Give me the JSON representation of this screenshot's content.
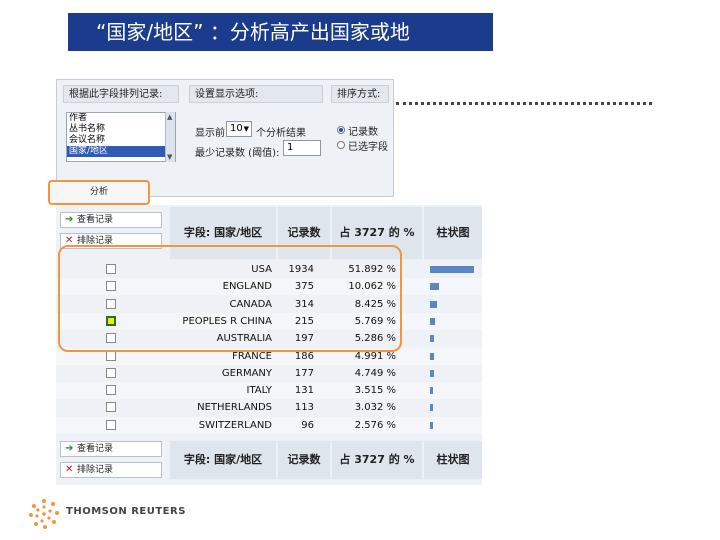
{
  "title": "“国家/地区” ：分析高产出国家或地",
  "analysis_panel": {
    "field_header": "根据此字段排列记录:",
    "display_header": "设置显示选项:",
    "sort_header": "排序方式:",
    "fields": [
      "作者",
      "丛书名称",
      "会议名称",
      "国家/地区"
    ],
    "display_label_prefix": "显示前",
    "display_value": "10",
    "display_label_suffix": "个分析结果",
    "min_count_label": "最少记录数 (阈值):",
    "min_count_value": "1",
    "sort_by_count": "记录数",
    "sort_by_field": "已选字段",
    "analyze_button": "分析"
  },
  "results": {
    "view_records": "查看记录",
    "exclude_records": "排除记录",
    "columns": {
      "field": "字段: 国家/地区",
      "count": "记录数",
      "percent": "占 3727 的 %",
      "chart": "柱状图"
    },
    "rows": [
      {
        "country": "USA",
        "count": "1934",
        "percent": "51.892 %",
        "share": 0.519,
        "checked": false
      },
      {
        "country": "ENGLAND",
        "count": "375",
        "percent": "10.062 %",
        "share": 0.101,
        "checked": false
      },
      {
        "country": "CANADA",
        "count": "314",
        "percent": "8.425 %",
        "share": 0.084,
        "checked": false
      },
      {
        "country": "PEOPLES R CHINA",
        "count": "215",
        "percent": "5.769 %",
        "share": 0.058,
        "checked": true
      },
      {
        "country": "AUSTRALIA",
        "count": "197",
        "percent": "5.286 %",
        "share": 0.053,
        "checked": false
      },
      {
        "country": "FRANCE",
        "count": "186",
        "percent": "4.991 %",
        "share": 0.05,
        "checked": false
      },
      {
        "country": "GERMANY",
        "count": "177",
        "percent": "4.749 %",
        "share": 0.047,
        "checked": false
      },
      {
        "country": "ITALY",
        "count": "131",
        "percent": "3.515 %",
        "share": 0.035,
        "checked": false
      },
      {
        "country": "NETHERLANDS",
        "count": "113",
        "percent": "3.032 %",
        "share": 0.03,
        "checked": false
      },
      {
        "country": "SWITZERLAND",
        "count": "96",
        "percent": "2.576 %",
        "share": 0.026,
        "checked": false
      }
    ]
  },
  "logo_text": "THOMSON REUTERS",
  "colors": {
    "title_bg": "#1b3c8c",
    "highlight": "#f0963c",
    "bar": "#5a86c4"
  }
}
